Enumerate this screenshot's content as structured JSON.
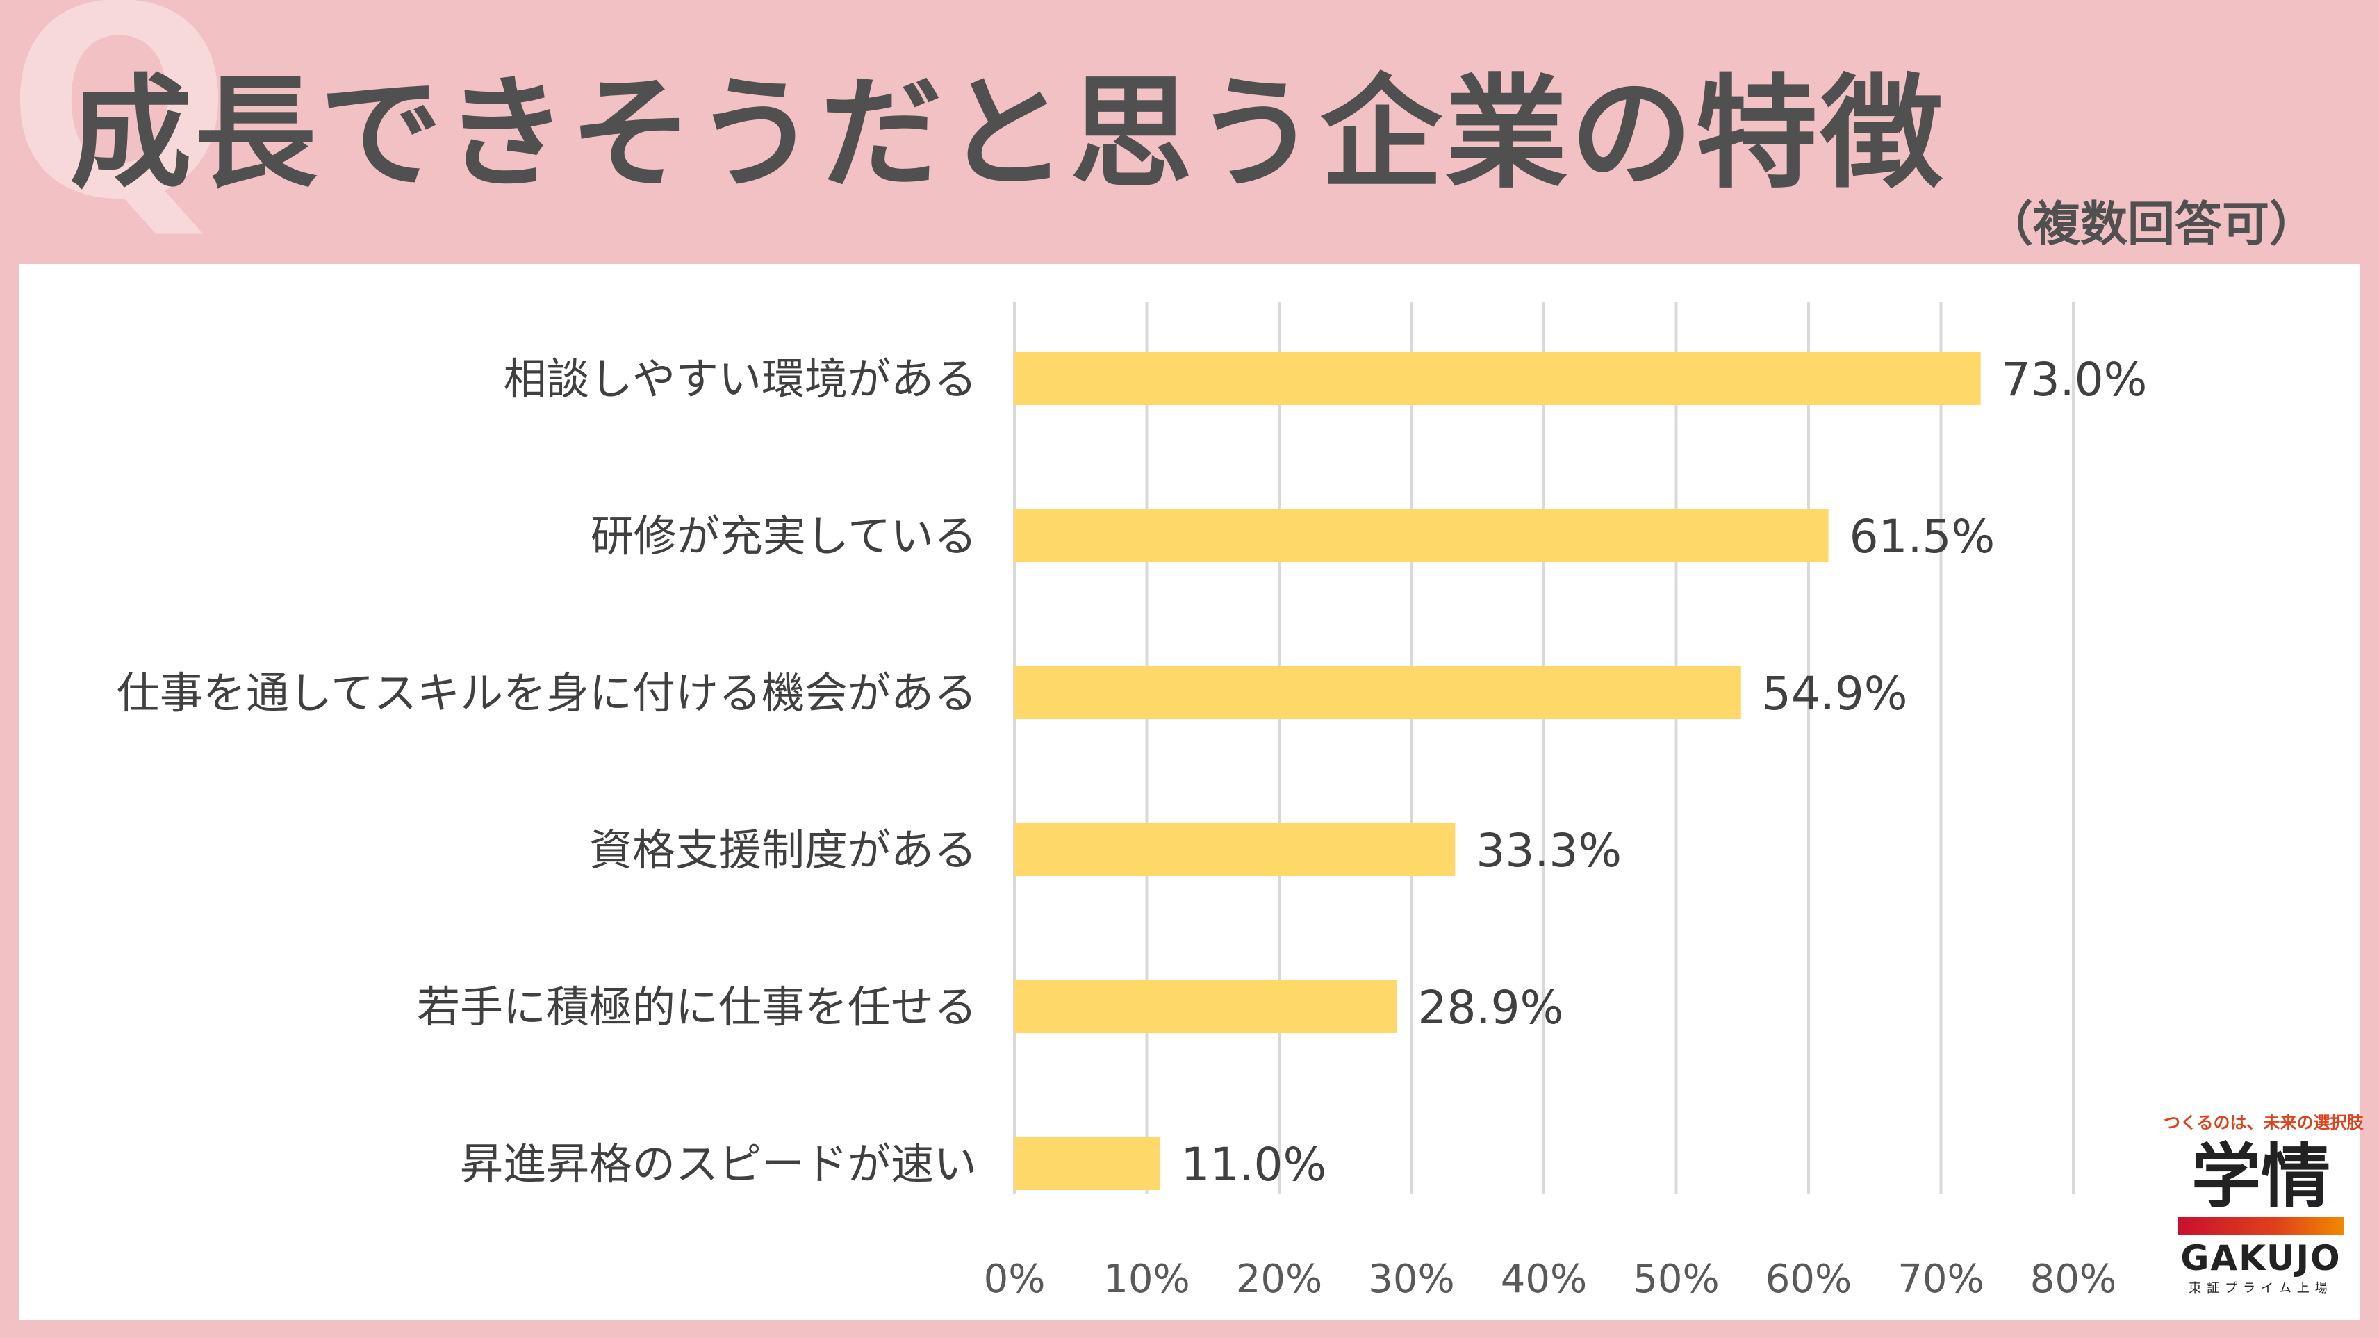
{
  "header": {
    "q_letter": "Q",
    "title": "成長できそうだと思う企業の特徴",
    "note": "（複数回答可）"
  },
  "chart_data": {
    "type": "bar",
    "orientation": "horizontal",
    "categories": [
      "相談しやすい環境がある",
      "研修が充実している",
      "仕事を通してスキルを身に付ける機会がある",
      "資格支援制度がある",
      "若手に積極的に仕事を任せる",
      "昇進昇格のスピードが速い"
    ],
    "values": [
      73.0,
      61.5,
      54.9,
      33.3,
      28.9,
      11.0
    ],
    "value_labels": [
      "73.0%",
      "61.5%",
      "54.9%",
      "33.3%",
      "28.9%",
      "11.0%"
    ],
    "x_ticks": [
      "0%",
      "10%",
      "20%",
      "30%",
      "40%",
      "50%",
      "60%",
      "70%",
      "80%"
    ],
    "xlim": [
      0,
      80
    ],
    "grid": true,
    "bar_color": "#fed96a"
  },
  "logo": {
    "tagline": "つくるのは、未来の選択肢",
    "kanji": "学情",
    "english": "GAKUJO",
    "sub": "東証プライム上場"
  }
}
